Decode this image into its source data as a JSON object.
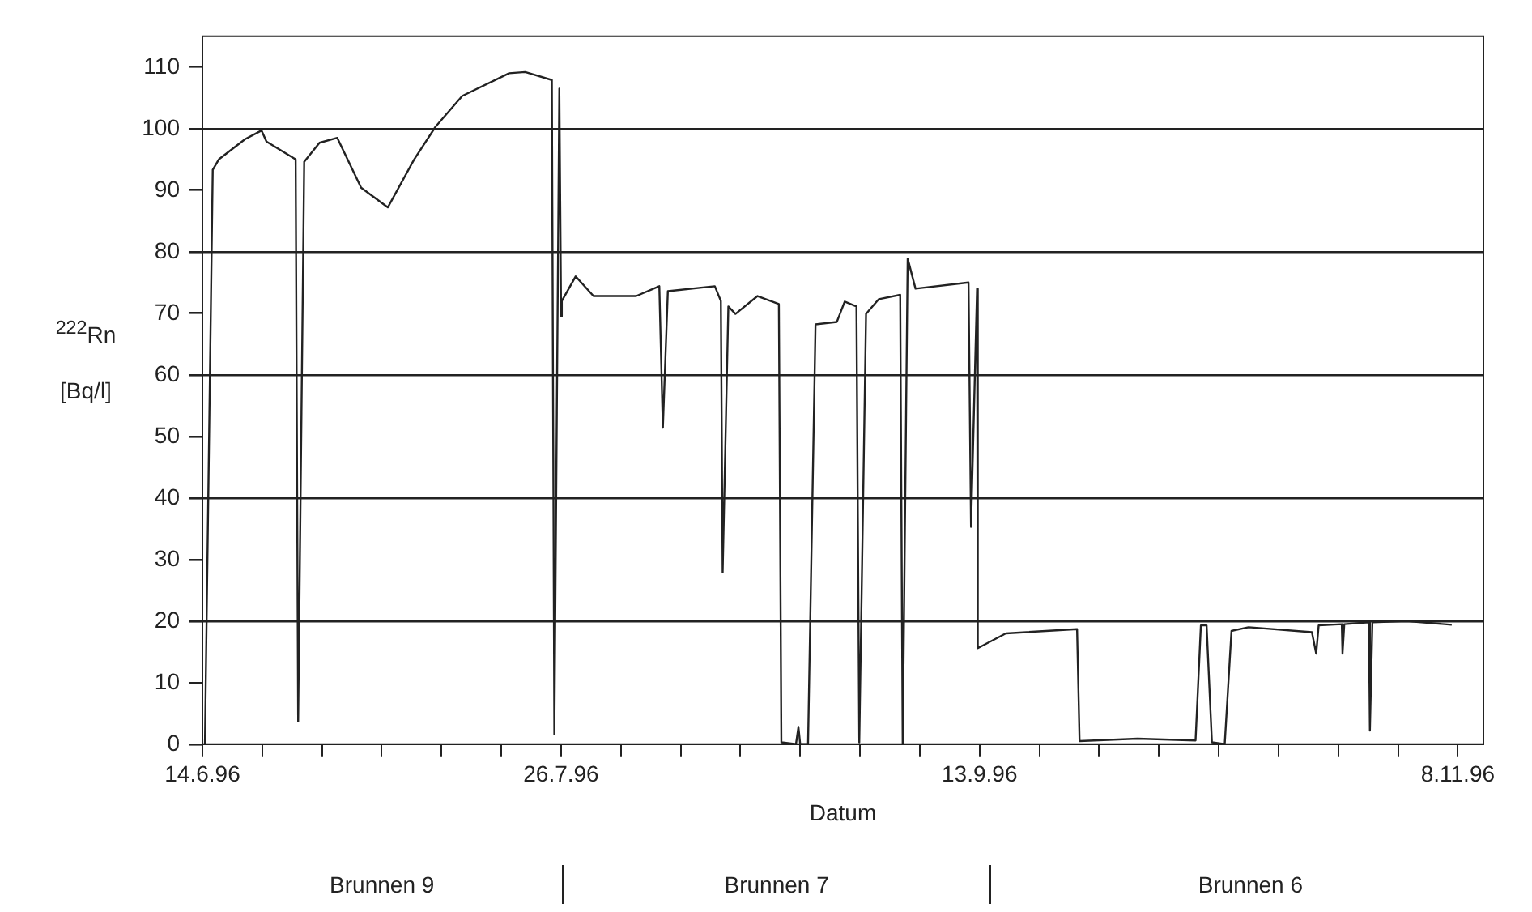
{
  "chart_data": {
    "type": "line",
    "xlabel": "Datum",
    "ylabel": "$^{222}$Rn\n[Bq/l]",
    "x": [
      "1996-06-14T07:00",
      "1996-06-15T05:00",
      "1996-06-15T22:00",
      "1996-06-19T00:00",
      "1996-06-20T22:00",
      "1996-06-21T12:00",
      "1996-06-24T22:00",
      "1996-06-25T05:00",
      "1996-06-25T22:00",
      "1996-06-27T17:00",
      "1996-06-29T19:00",
      "1996-07-02T14:00",
      "1996-07-05T17:00",
      "1996-07-08T19:00",
      "1996-07-11T07:00",
      "1996-07-14T10:00",
      "1996-07-19T22:00",
      "1996-07-21T19:00",
      "1996-07-24T22:00",
      "1996-07-25T05:00",
      "1996-07-25T19:00",
      "1996-07-26T00:00",
      "1996-07-26T02:00",
      "1996-07-27T17:00",
      "1996-07-29T19:00",
      "1996-08-03T19:00",
      "1996-08-06T12:00",
      "1996-08-06T22:00",
      "1996-08-07T12:00",
      "1996-08-13T00:00",
      "1996-08-13T17:00",
      "1996-08-13T22:00",
      "1996-08-14T14:00",
      "1996-08-15T10:00",
      "1996-08-18T00:00",
      "1996-08-20T12:00",
      "1996-08-20T19:00",
      "1996-08-22T12:00",
      "1996-08-22T19:00",
      "1996-08-23T00:00",
      "1996-08-23T22:00",
      "1996-08-24T19:00",
      "1996-08-27T07:00",
      "1996-08-28T05:00",
      "1996-08-29T14:00",
      "1996-08-29T22:00",
      "1996-08-30T17:00",
      "1996-09-01T05:00",
      "1996-09-03T17:00",
      "1996-09-04T00:00",
      "1996-09-04T14:00",
      "1996-09-05T12:00",
      "1996-09-11T17:00",
      "1996-09-12T00:00",
      "1996-09-12T17:00",
      "1996-09-12T19:00",
      "1996-09-16T02:00",
      "1996-09-24T10:00",
      "1996-09-24T17:00",
      "1996-10-01T12:00",
      "1996-10-08T07:00",
      "1996-10-08T22:00",
      "1996-10-09T14:00",
      "1996-10-10T05:00",
      "1996-10-11T17:00",
      "1996-10-12T12:00",
      "1996-10-14T12:00",
      "1996-10-21T22:00",
      "1996-10-22T10:00",
      "1996-10-22T17:00",
      "1996-10-25T10:00",
      "1996-10-25T12:00",
      "1996-10-25T17:00",
      "1996-10-28T14:00",
      "1996-10-28T17:00",
      "1996-10-29T00:00",
      "1996-11-02T00:00",
      "1996-11-07T07:00"
    ],
    "series": [
      {
        "color": "#222222",
        "values": [
          0,
          93.3,
          95,
          98.3,
          99.7,
          97.9,
          95,
          3.7,
          94.6,
          97.7,
          98.5,
          90.4,
          87.2,
          95,
          100.3,
          105.3,
          109,
          109.2,
          107.9,
          1.6,
          106.5,
          69.5,
          72,
          76,
          72.8,
          72.8,
          74.4,
          51.4,
          73.6,
          74.4,
          72,
          27.9,
          71.1,
          69.9,
          72.8,
          71.5,
          0.3,
          0,
          2.8,
          0,
          0,
          68.2,
          68.6,
          71.9,
          71.1,
          0.3,
          69.9,
          72.3,
          73,
          0,
          78.9,
          74,
          75,
          35.3,
          74,
          15.6,
          18,
          18.7,
          0.5,
          0.9,
          0.6,
          19.3,
          19.3,
          0.3,
          0,
          18.4,
          19,
          18.2,
          14.7,
          19.3,
          19.5,
          14.7,
          19.5,
          19.8,
          2.2,
          19.8,
          20,
          19.4
        ]
      }
    ],
    "xlim": [
      "1996-06-14",
      "1996-11-11"
    ],
    "xticks": [
      {
        "value": "1996-06-14",
        "label": "14.6.96"
      },
      {
        "value": "1996-06-21",
        "label": null
      },
      {
        "value": "1996-06-28",
        "label": null
      },
      {
        "value": "1996-07-05",
        "label": null
      },
      {
        "value": "1996-07-12",
        "label": null
      },
      {
        "value": "1996-07-19",
        "label": null
      },
      {
        "value": "1996-07-26",
        "label": "26.7.96"
      },
      {
        "value": "1996-08-02",
        "label": null
      },
      {
        "value": "1996-08-09",
        "label": null
      },
      {
        "value": "1996-08-16",
        "label": null
      },
      {
        "value": "1996-08-23",
        "label": null
      },
      {
        "value": "1996-08-30",
        "label": null
      },
      {
        "value": "1996-09-06",
        "label": null
      },
      {
        "value": "1996-09-13",
        "label": "13.9.96"
      },
      {
        "value": "1996-09-20",
        "label": null
      },
      {
        "value": "1996-09-27",
        "label": null
      },
      {
        "value": "1996-10-04",
        "label": null
      },
      {
        "value": "1996-10-11",
        "label": null
      },
      {
        "value": "1996-10-18",
        "label": null
      },
      {
        "value": "1996-10-25",
        "label": null
      },
      {
        "value": "1996-11-01",
        "label": null
      },
      {
        "value": "1996-11-08",
        "label": "8.11.96"
      }
    ],
    "ylim": [
      0,
      115
    ],
    "yticks": [
      0,
      10,
      20,
      30,
      40,
      50,
      60,
      70,
      80,
      90,
      100,
      110
    ],
    "grid": "y",
    "legend": false,
    "marker": "none",
    "line_style": "solid",
    "annotations": [
      "Brunnen 9",
      "Brunnen 7",
      "Brunnen 6"
    ]
  }
}
